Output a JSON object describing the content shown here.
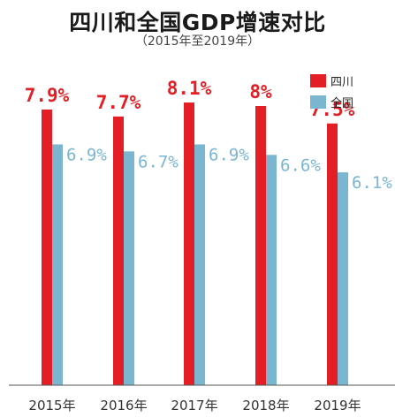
{
  "chart_data": {
    "type": "bar",
    "title": "四川和全国GDP增速对比",
    "subtitle": "（2015年至2019年）",
    "categories": [
      "2015年",
      "2016年",
      "2017年",
      "2018年",
      "2019年"
    ],
    "series": [
      {
        "name": "四川",
        "values": [
          7.9,
          7.7,
          8.1,
          8.0,
          7.5
        ],
        "labels": [
          "7.9%",
          "7.7%",
          "8.1%",
          "8%",
          "7.5%"
        ],
        "color": "#e31e24"
      },
      {
        "name": "全国",
        "values": [
          6.9,
          6.7,
          6.9,
          6.6,
          6.1
        ],
        "labels": [
          "6.9%",
          "6.7%",
          "6.9%",
          "6.6%",
          "6.1%"
        ],
        "color": "#7bb6d1"
      }
    ],
    "grid": false,
    "legend_position": "top-right"
  }
}
